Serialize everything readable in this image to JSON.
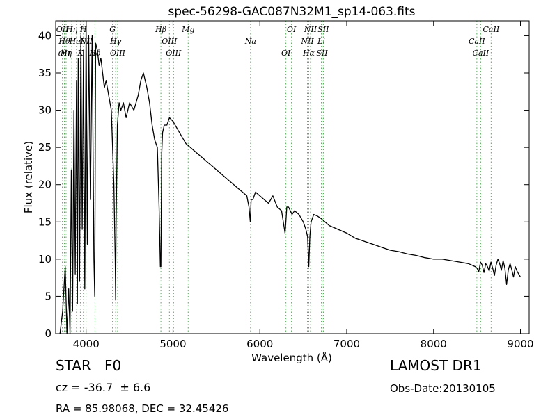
{
  "chart_data": {
    "type": "line",
    "title": "spec-56298-GAC087N32M1_sp14-063.fits",
    "xlabel": "Wavelength (Å)",
    "ylabel": "Flux (relative)",
    "xlim": [
      3650,
      9100
    ],
    "ylim": [
      0,
      42
    ],
    "xticks": [
      4000,
      5000,
      6000,
      7000,
      8000,
      9000
    ],
    "yticks": [
      0,
      5,
      10,
      15,
      20,
      25,
      30,
      35,
      40
    ],
    "grid": false,
    "colors": {
      "spectrum": "#000000",
      "lines": "#4caf50"
    },
    "series": [
      {
        "x": [
          3700,
          3730,
          3760,
          3780,
          3800,
          3815,
          3830,
          3845,
          3860,
          3875,
          3890,
          3900,
          3910,
          3925,
          3940,
          3955,
          3970,
          3985,
          4000,
          4015,
          4030,
          4050,
          4070,
          4090,
          4100,
          4110,
          4130,
          4150,
          4170,
          4190,
          4210,
          4230,
          4260,
          4290,
          4320,
          4335,
          4340,
          4345,
          4360,
          4380,
          4400,
          4430,
          4460,
          4500,
          4550,
          4600,
          4630,
          4660,
          4700,
          4730,
          4760,
          4790,
          4820,
          4840,
          4855,
          4861,
          4870,
          4880,
          4900,
          4930,
          4960,
          5000,
          5050,
          5100,
          5150,
          5200,
          5250,
          5300,
          5350,
          5400,
          5450,
          5500,
          5550,
          5600,
          5650,
          5700,
          5750,
          5800,
          5850,
          5875,
          5890,
          5900,
          5920,
          5950,
          6000,
          6050,
          6100,
          6150,
          6200,
          6250,
          6290,
          6300,
          6310,
          6330,
          6370,
          6400,
          6450,
          6500,
          6530,
          6550,
          6563,
          6575,
          6590,
          6620,
          6660,
          6700,
          6750,
          6800,
          6900,
          7000,
          7100,
          7200,
          7300,
          7400,
          7500,
          7600,
          7700,
          7800,
          7900,
          8000,
          8100,
          8200,
          8300,
          8400,
          8480,
          8500,
          8520,
          8540,
          8560,
          8580,
          8600,
          8620,
          8640,
          8660,
          8680,
          8700,
          8720,
          8740,
          8760,
          8780,
          8800,
          8820,
          8840,
          8860,
          8880,
          8900,
          8920,
          8940,
          8960,
          8980,
          9000
        ],
        "y": [
          0,
          3,
          9,
          0,
          6,
          0,
          22,
          3,
          30,
          8,
          34,
          4,
          37,
          7,
          40,
          14,
          38,
          6,
          42,
          12,
          40,
          18,
          40,
          10,
          5,
          39,
          38,
          36,
          37,
          35,
          33,
          34,
          32,
          30,
          20,
          10,
          4.5,
          14,
          28,
          31,
          30,
          31,
          29,
          31,
          30,
          32,
          34,
          35,
          33,
          31,
          28,
          26,
          25,
          17,
          9,
          9,
          24,
          27,
          28,
          28,
          29,
          28.5,
          27.5,
          26.5,
          25.5,
          25,
          24.5,
          24,
          23.5,
          23,
          22.5,
          22,
          21.5,
          21,
          20.5,
          20,
          19.5,
          19,
          18.5,
          17,
          15,
          18,
          18,
          19,
          18.5,
          18,
          17.5,
          18.5,
          17,
          16.5,
          13.5,
          15,
          17,
          17,
          16,
          16.5,
          16,
          15,
          14,
          13,
          9,
          13,
          15,
          16,
          15.8,
          15.5,
          15,
          14.5,
          14,
          13.5,
          12.8,
          12.4,
          12,
          11.6,
          11.2,
          11,
          10.7,
          10.5,
          10.2,
          10,
          10,
          9.8,
          9.6,
          9.4,
          9,
          8.8,
          8.3,
          9.6,
          9.2,
          8.2,
          9.4,
          9.0,
          8.4,
          9.6,
          8.8,
          7.8,
          9.2,
          10,
          9.4,
          8.5,
          9.8,
          8.8,
          6.6,
          8.6,
          9.4,
          8.6,
          7.6,
          9.0,
          8.4,
          8,
          7.6
        ]
      }
    ],
    "lines": [
      {
        "x": 3727,
        "labels": [
          "OII"
        ],
        "pos": "top"
      },
      {
        "x": 3750,
        "labels": [
          "Hθ",
          "OII"
        ],
        "pos": "top"
      },
      {
        "x": 3770,
        "labels": [
          "Hη"
        ],
        "pos": "top"
      },
      {
        "x": 3835,
        "labels": [
          "Hη"
        ],
        "pos": "top"
      },
      {
        "x": 3889,
        "labels": [
          "HeI"
        ],
        "pos": "top"
      },
      {
        "x": 3934,
        "labels": [
          "K"
        ],
        "pos": "top"
      },
      {
        "x": 3969,
        "labels": [
          "H"
        ],
        "pos": "top"
      },
      {
        "x": 4000,
        "labels": [
          "NII"
        ],
        "pos": "top"
      },
      {
        "x": 4102,
        "labels": [
          "Hδ"
        ],
        "pos": "top"
      },
      {
        "x": 4304,
        "labels": [
          "G"
        ],
        "pos": "top"
      },
      {
        "x": 4340,
        "labels": [
          "Hγ"
        ],
        "pos": "top"
      },
      {
        "x": 4363,
        "labels": [
          "OIII"
        ],
        "pos": "top"
      },
      {
        "x": 4861,
        "labels": [
          "Hβ"
        ],
        "pos": "top"
      },
      {
        "x": 4959,
        "labels": [
          "OIII"
        ],
        "pos": "top"
      },
      {
        "x": 5007,
        "labels": [
          "OIII"
        ],
        "pos": "top"
      },
      {
        "x": 5175,
        "labels": [
          "Mg"
        ],
        "pos": "top"
      },
      {
        "x": 5893,
        "labels": [
          "Na"
        ],
        "pos": "top"
      },
      {
        "x": 6300,
        "labels": [
          "OI"
        ],
        "pos": "top"
      },
      {
        "x": 6364,
        "labels": [
          "OI"
        ],
        "pos": "top"
      },
      {
        "x": 6548,
        "labels": [
          "NII"
        ],
        "pos": "top"
      },
      {
        "x": 6563,
        "labels": [
          "Hα"
        ],
        "pos": "top"
      },
      {
        "x": 6583,
        "labels": [
          "NII"
        ],
        "pos": "top"
      },
      {
        "x": 6708,
        "labels": [
          "Li"
        ],
        "pos": "top"
      },
      {
        "x": 6716,
        "labels": [
          "SII"
        ],
        "pos": "top"
      },
      {
        "x": 6731,
        "labels": [
          "SII"
        ],
        "pos": "top"
      },
      {
        "x": 8498,
        "labels": [
          "CaII"
        ],
        "pos": "top"
      },
      {
        "x": 8542,
        "labels": [
          "CaII"
        ],
        "pos": "top"
      },
      {
        "x": 8662,
        "labels": [
          "CaII"
        ],
        "pos": "top"
      }
    ]
  },
  "info": {
    "class": "STAR",
    "subclass": "F0",
    "survey": "LAMOST DR1",
    "cz": "cz = -36.7  ± 6.6",
    "obs_date": "Obs-Date:20130105",
    "radec": "RA = 85.98068, DEC = 32.45426"
  }
}
